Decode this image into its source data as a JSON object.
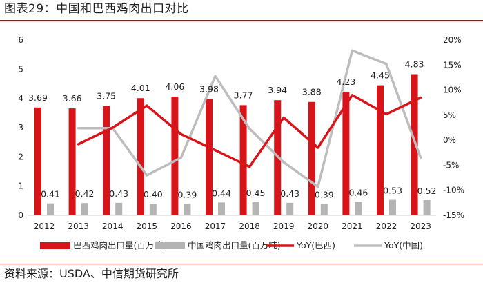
{
  "figure_title": "图表29：中国和巴西鸡肉出口对比",
  "source_note": "资料来源：USDA、中信期货研究所",
  "colors": {
    "accent_red": "#c00000",
    "brazil_bar": "#d7141a",
    "china_bar": "#b4b4b4",
    "brazil_line": "#d7141a",
    "china_line": "#bdbdbd"
  },
  "chart_data": {
    "type": "bar",
    "categories": [
      "2012",
      "2013",
      "2014",
      "2015",
      "2016",
      "2017",
      "2018",
      "2019",
      "2020",
      "2021",
      "2022",
      "2023"
    ],
    "series": [
      {
        "name": "巴西鸡肉出口量(百万吨)",
        "kind": "bar",
        "axis": "left",
        "values": [
          3.69,
          3.66,
          3.75,
          4.01,
          4.06,
          3.98,
          3.77,
          3.94,
          3.88,
          4.23,
          4.45,
          4.83
        ],
        "labels": [
          "3.69",
          "3.66",
          "3.75",
          "4.01",
          "4.06",
          "3.98",
          "3.77",
          "3.94",
          "3.88",
          "4.23",
          "4.45",
          "4.83"
        ]
      },
      {
        "name": "中国鸡肉出口量(百万吨)",
        "kind": "bar",
        "axis": "left",
        "values": [
          0.41,
          0.42,
          0.43,
          0.4,
          0.39,
          0.44,
          0.45,
          0.43,
          0.39,
          0.46,
          0.53,
          0.52
        ],
        "labels": [
          "0.41",
          "0.42",
          "0.43",
          "0.40",
          "0.39",
          "0.44",
          "0.45",
          "0.43",
          "0.39",
          "0.46",
          "0.53",
          "0.52"
        ]
      },
      {
        "name": "YoY(巴西)",
        "kind": "line",
        "axis": "right",
        "values": [
          null,
          -0.8,
          2.5,
          6.9,
          1.2,
          -2.0,
          -5.3,
          4.5,
          -1.5,
          9.0,
          5.2,
          8.5
        ]
      },
      {
        "name": "YoY(中国)",
        "kind": "line",
        "axis": "right",
        "values": [
          null,
          2.4,
          2.4,
          -7.0,
          -3.5,
          12.8,
          2.3,
          -4.4,
          -9.3,
          17.9,
          15.2,
          -3.5
        ]
      }
    ],
    "y_left": {
      "min": 0,
      "max": 6,
      "ticks": [
        "0",
        "1",
        "2",
        "3",
        "4",
        "5",
        "6"
      ]
    },
    "y_right": {
      "min": -15,
      "max": 20,
      "ticks": [
        "-15%",
        "-10%",
        "-5%",
        "0%",
        "5%",
        "10%",
        "15%",
        "20%"
      ]
    },
    "grid": false,
    "legend_position": "bottom"
  }
}
